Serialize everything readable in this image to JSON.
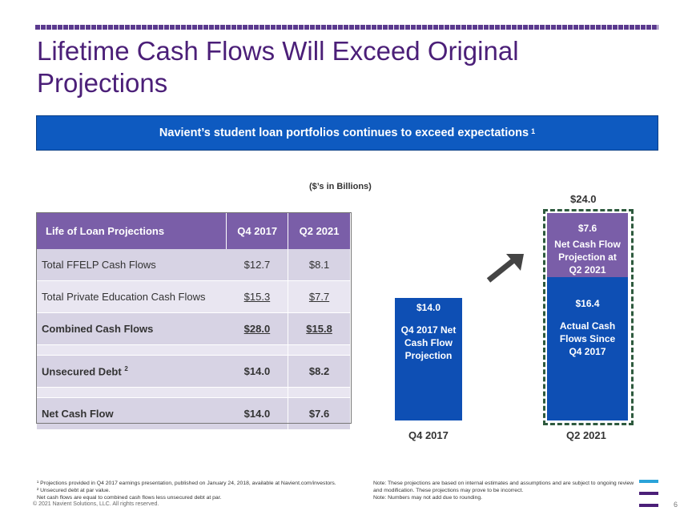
{
  "title": "Lifetime Cash Flows Will Exceed Original Projections",
  "banner": {
    "text": "Navient’s student loan portfolios continues to exceed expectations",
    "sup": "1"
  },
  "units": "($’s in Billions)",
  "table": {
    "headers": [
      "Life of Loan Projections",
      "Q4 2017",
      "Q2 2021"
    ],
    "rows": [
      {
        "label": "Total FFELP Cash Flows",
        "q4": "$12.7",
        "q2": "$8.1"
      },
      {
        "label": "Total Private Education Cash Flows",
        "q4": "$15.3",
        "q2": "$7.7"
      },
      {
        "label": "Combined Cash Flows",
        "q4": "$28.0",
        "q2": "$15.8"
      },
      {
        "label": "Unsecured Debt",
        "sup": "2",
        "q4": "$14.0",
        "q2": "$8.2"
      },
      {
        "label": "Net Cash Flow",
        "q4": "$14.0",
        "q2": "$7.6"
      }
    ]
  },
  "chart_data": {
    "type": "bar",
    "categories": [
      "Q4 2017",
      "Q2 2021"
    ],
    "series": [
      {
        "name": "Q4 2017 Net Cash Flow Projection",
        "values": [
          14.0,
          null
        ]
      },
      {
        "name": "Actual Cash Flows Since Q4 2017",
        "values": [
          null,
          16.4
        ]
      },
      {
        "name": "Net Cash Flow Projection at Q2 2021",
        "values": [
          null,
          7.6
        ]
      }
    ],
    "total_label": "$24.0",
    "bar_labels": {
      "q4_value": "$14.0",
      "q4_text": [
        "Q4 2017 Net",
        "Cash Flow",
        "Projection"
      ],
      "q2_top_value": "$7.6",
      "q2_top_text": [
        "Net Cash Flow",
        "Projection at",
        "Q2 2021"
      ],
      "q2_bottom_value": "$16.4",
      "q2_bottom_text": [
        "Actual Cash",
        "Flows Since",
        "Q4 2017"
      ]
    },
    "stacked": true,
    "colors": {
      "blue": "#0e4fb4",
      "purple": "#7a5ea8",
      "dash": "#2e5a3e"
    }
  },
  "footnotes": {
    "left": [
      "¹ Projections provided in Q4 2017 earnings presentation, published on January 24, 2018, available at Navient.com/investors.",
      "² Unsecured debt at par value.",
      "Net cash flows are equal to combined cash flows less unsecured debt at par."
    ],
    "right": [
      "Note: These projections are based on internal estimates and assumptions and are subject to ongoing review and modification. These projections may prove to be incorrect.",
      "Note: Numbers may not add due to rounding."
    ]
  },
  "copyright": "© 2021 Navient Solutions, LLC. All rights reserved.",
  "page_number": "6",
  "logo": {
    "colors": [
      "#2aa3d9",
      "#4b1f78",
      "#4b1f78"
    ],
    "icon": "navient-logo-icon"
  }
}
